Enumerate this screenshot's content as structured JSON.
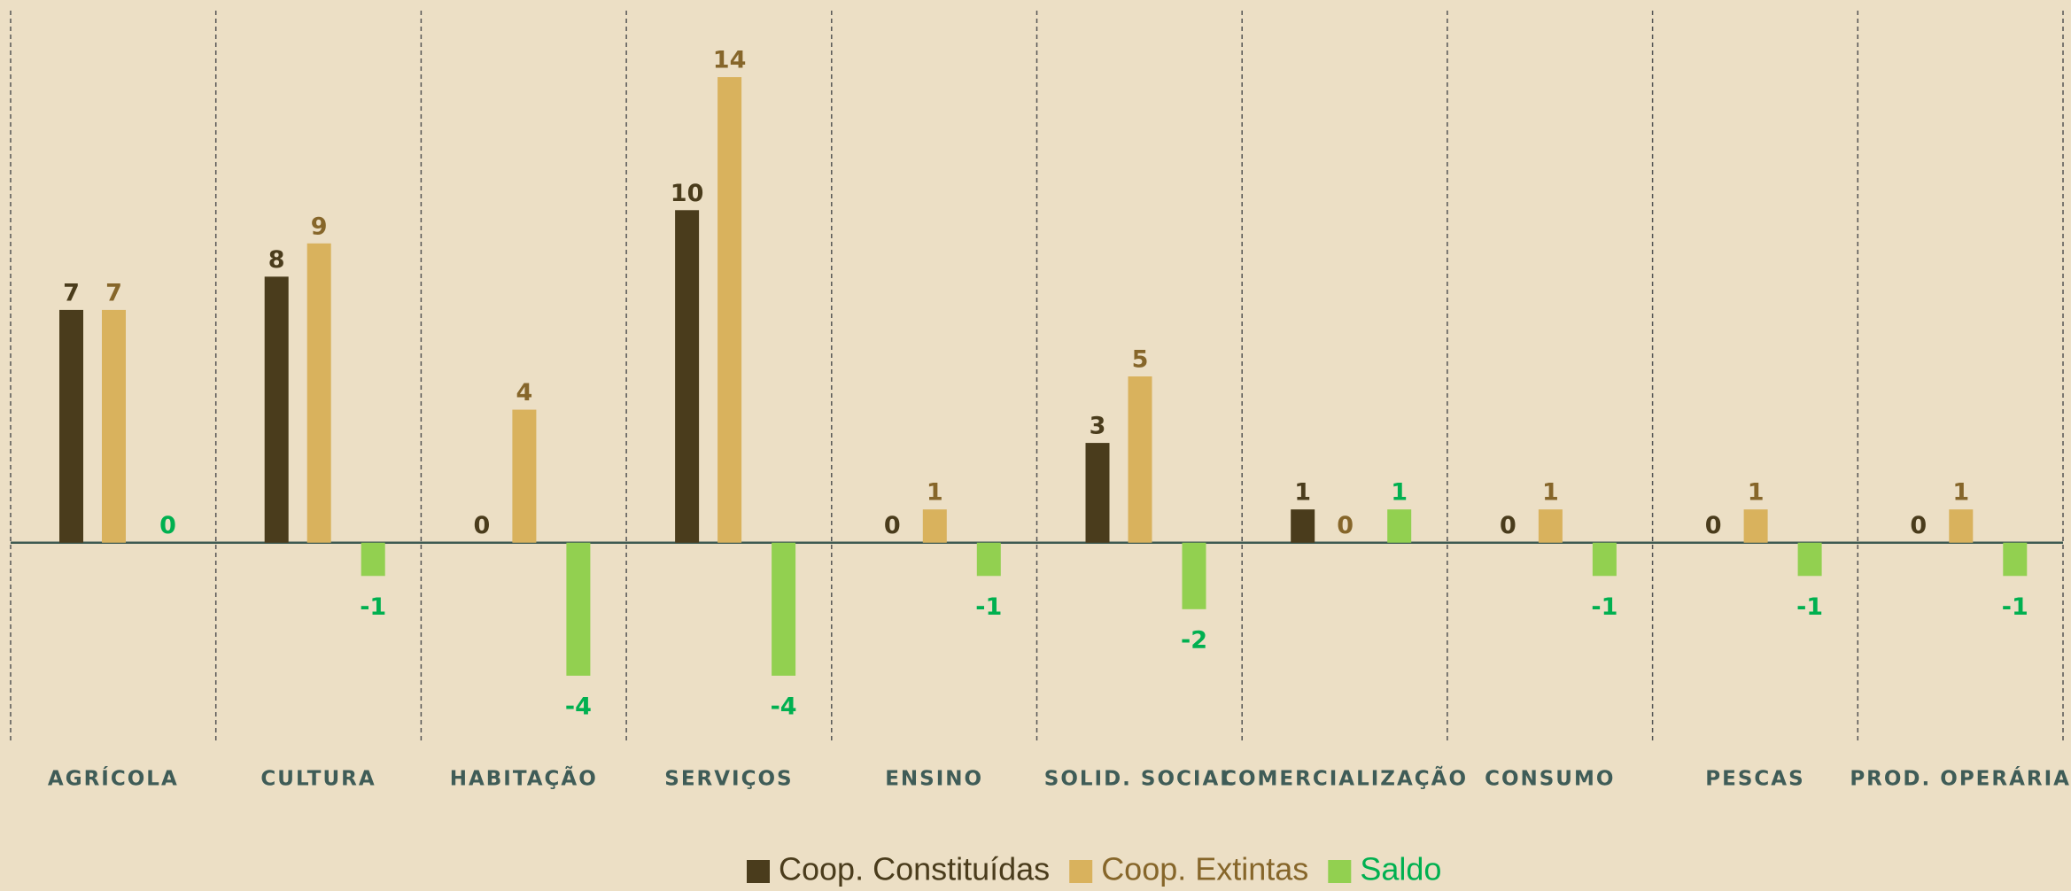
{
  "chart_data": {
    "type": "bar",
    "categories": [
      "AGRÍCOLA",
      "CULTURA",
      "HABITAÇÃO",
      "SERVIÇOS",
      "ENSINO",
      "SOLID. SOCIAL",
      "COMERCIALIZAÇÃO",
      "CONSUMO",
      "PESCAS",
      "PROD. OPERÁRIA"
    ],
    "series": [
      {
        "name": "Coop. Constituídas",
        "color": "#4a3c1c",
        "label_color": "#4a3c1c",
        "values": [
          7,
          8,
          0,
          10,
          0,
          3,
          1,
          0,
          0,
          0
        ]
      },
      {
        "name": "Coop. Extintas",
        "color": "#d9b25d",
        "label_color": "#86662a",
        "values": [
          7,
          9,
          4,
          14,
          1,
          5,
          0,
          1,
          1,
          1
        ]
      },
      {
        "name": "Saldo",
        "color": "#92d050",
        "label_color": "#00b050",
        "values": [
          0,
          -1,
          -4,
          -4,
          -1,
          -2,
          1,
          -1,
          -1,
          -1
        ]
      }
    ],
    "ylim": [
      -6,
      16
    ],
    "legend": "bottom"
  }
}
